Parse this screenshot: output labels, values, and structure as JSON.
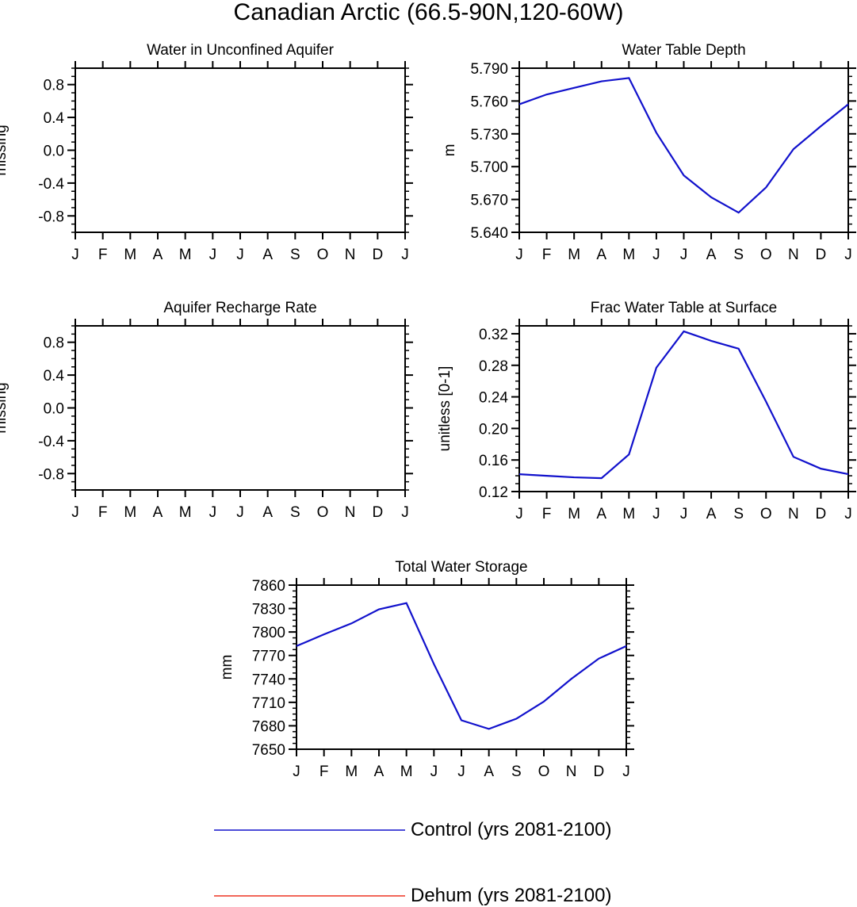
{
  "title": "Canadian Arctic (66.5-90N,120-60W)",
  "months": [
    "J",
    "F",
    "M",
    "A",
    "M",
    "J",
    "J",
    "A",
    "S",
    "O",
    "N",
    "D",
    "J"
  ],
  "colors": {
    "control": "#1111cc",
    "dehum": "#ee3322",
    "axis": "#000000"
  },
  "chart_data": [
    {
      "type": "line",
      "title": "Water in Unconfined Aquifer",
      "ylabel": "missing",
      "ylim": [
        -1.0,
        1.0
      ],
      "yticks": [
        "0.8",
        "0.4",
        "0.0",
        "-0.4",
        "-0.8"
      ],
      "ytick_values": [
        0.8,
        0.4,
        0.0,
        -0.4,
        -0.8
      ],
      "x": [
        "J",
        "F",
        "M",
        "A",
        "M",
        "J",
        "J",
        "A",
        "S",
        "O",
        "N",
        "D",
        "J"
      ],
      "series": []
    },
    {
      "type": "line",
      "title": "Water Table Depth",
      "ylabel": "m",
      "ylim": [
        5.64,
        5.79
      ],
      "yticks": [
        "5.790",
        "5.760",
        "5.730",
        "5.700",
        "5.670",
        "5.640"
      ],
      "ytick_values": [
        5.79,
        5.76,
        5.73,
        5.7,
        5.67,
        5.64
      ],
      "x": [
        "J",
        "F",
        "M",
        "A",
        "M",
        "J",
        "J",
        "A",
        "S",
        "O",
        "N",
        "D",
        "J"
      ],
      "series": [
        {
          "name": "Control (yrs 2081-2100)",
          "values": [
            5.757,
            5.766,
            5.772,
            5.778,
            5.781,
            5.731,
            5.692,
            5.672,
            5.658,
            5.681,
            5.716,
            5.737,
            5.757
          ]
        }
      ]
    },
    {
      "type": "line",
      "title": "Aquifer Recharge Rate",
      "ylabel": "missing",
      "ylim": [
        -1.0,
        1.0
      ],
      "yticks": [
        "0.8",
        "0.4",
        "0.0",
        "-0.4",
        "-0.8"
      ],
      "ytick_values": [
        0.8,
        0.4,
        0.0,
        -0.4,
        -0.8
      ],
      "x": [
        "J",
        "F",
        "M",
        "A",
        "M",
        "J",
        "J",
        "A",
        "S",
        "O",
        "N",
        "D",
        "J"
      ],
      "series": []
    },
    {
      "type": "line",
      "title": "Frac Water Table at Surface",
      "ylabel": "unitless [0-1]",
      "ylim": [
        0.12,
        0.33
      ],
      "yticks": [
        "0.32",
        "0.28",
        "0.24",
        "0.20",
        "0.16",
        "0.12"
      ],
      "ytick_values": [
        0.32,
        0.28,
        0.24,
        0.2,
        0.16,
        0.12
      ],
      "x": [
        "J",
        "F",
        "M",
        "A",
        "M",
        "J",
        "J",
        "A",
        "S",
        "O",
        "N",
        "D",
        "J"
      ],
      "series": [
        {
          "name": "Control (yrs 2081-2100)",
          "values": [
            0.142,
            0.14,
            0.138,
            0.137,
            0.167,
            0.277,
            0.323,
            0.311,
            0.301,
            0.234,
            0.164,
            0.149,
            0.142
          ]
        }
      ]
    },
    {
      "type": "line",
      "title": "Total Water Storage",
      "ylabel": "mm",
      "ylim": [
        7650,
        7860
      ],
      "yticks": [
        "7860",
        "7830",
        "7800",
        "7770",
        "7740",
        "7710",
        "7680",
        "7650"
      ],
      "ytick_values": [
        7860,
        7830,
        7800,
        7770,
        7740,
        7710,
        7680,
        7650
      ],
      "x": [
        "J",
        "F",
        "M",
        "A",
        "M",
        "J",
        "J",
        "A",
        "S",
        "O",
        "N",
        "D",
        "J"
      ],
      "series": [
        {
          "name": "Control (yrs 2081-2100)",
          "values": [
            7782,
            7797,
            7811,
            7829,
            7837,
            7759,
            7687,
            7676,
            7689,
            7711,
            7740,
            7766,
            7782
          ]
        }
      ]
    }
  ],
  "legend": [
    {
      "label": "Control (yrs 2081-2100)",
      "color": "#1111cc"
    },
    {
      "label": "Dehum (yrs 2081-2100)",
      "color": "#ee3322"
    }
  ]
}
